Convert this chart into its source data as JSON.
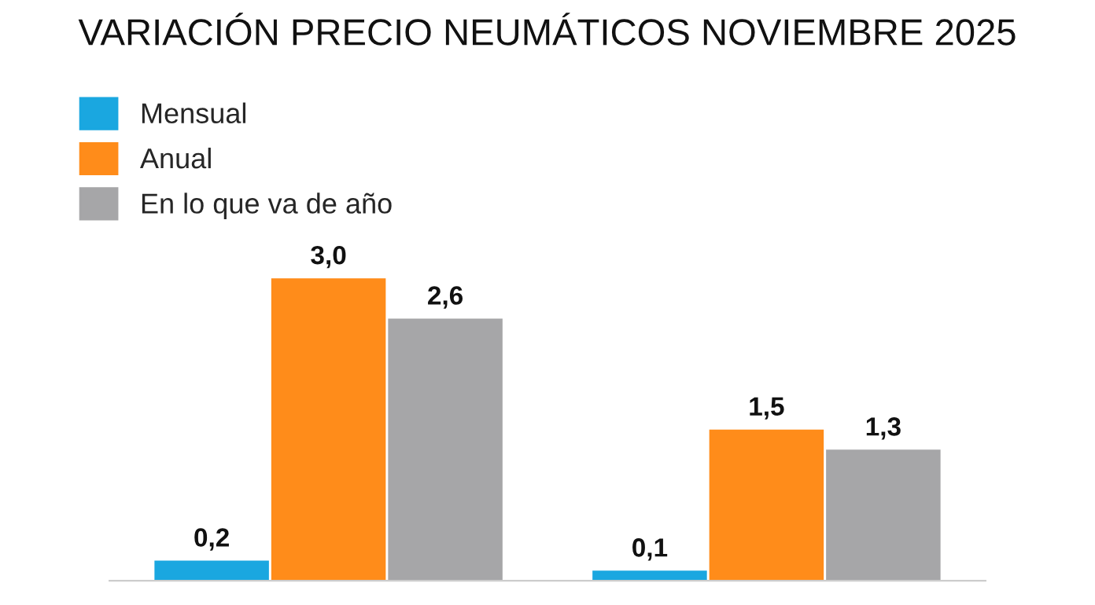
{
  "chart_data": {
    "type": "bar",
    "title": "VARIACIÓN PRECIO NEUMÁTICOS NOVIEMBRE 2025",
    "categories": [
      null,
      null
    ],
    "series": [
      {
        "name": "Mensual",
        "color": "#1aa7e0",
        "values": [
          0.2,
          0.1
        ],
        "value_labels": [
          "0,2",
          "0,1"
        ]
      },
      {
        "name": "Anual",
        "color": "#ff8c1a",
        "values": [
          3.0,
          1.5
        ],
        "value_labels": [
          "3,0",
          "1,5"
        ]
      },
      {
        "name": "En lo que va de año",
        "color": "#a6a6a8",
        "values": [
          2.6,
          1.3
        ],
        "value_labels": [
          "2,6",
          "1,3"
        ]
      }
    ],
    "legend": "top left",
    "grid": false
  }
}
